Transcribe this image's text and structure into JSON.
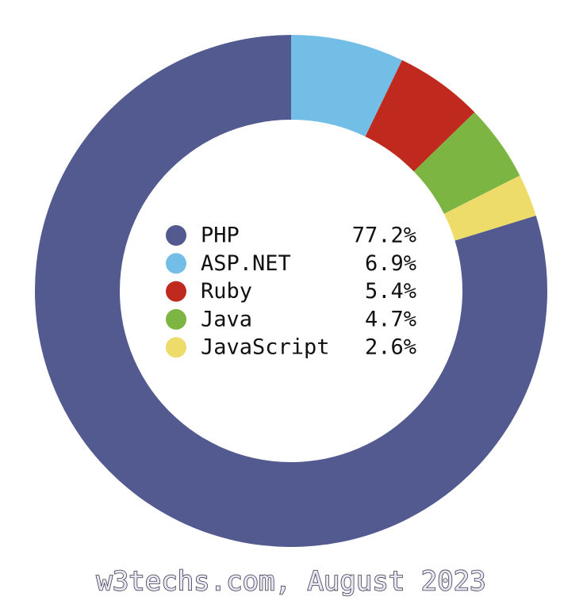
{
  "chart_data": {
    "type": "donut",
    "categories": [
      "PHP",
      "ASP.NET",
      "Ruby",
      "Java",
      "JavaScript"
    ],
    "values": [
      77.2,
      6.9,
      5.4,
      4.7,
      2.6
    ],
    "value_labels": [
      "77.2%",
      "6.9%",
      "5.4%",
      "4.7%",
      "2.6%"
    ],
    "colors": [
      "#525a8f",
      "#72bee6",
      "#c0291e",
      "#7db543",
      "#eedc6a"
    ],
    "caption": "w3techs.com, August 2023"
  }
}
